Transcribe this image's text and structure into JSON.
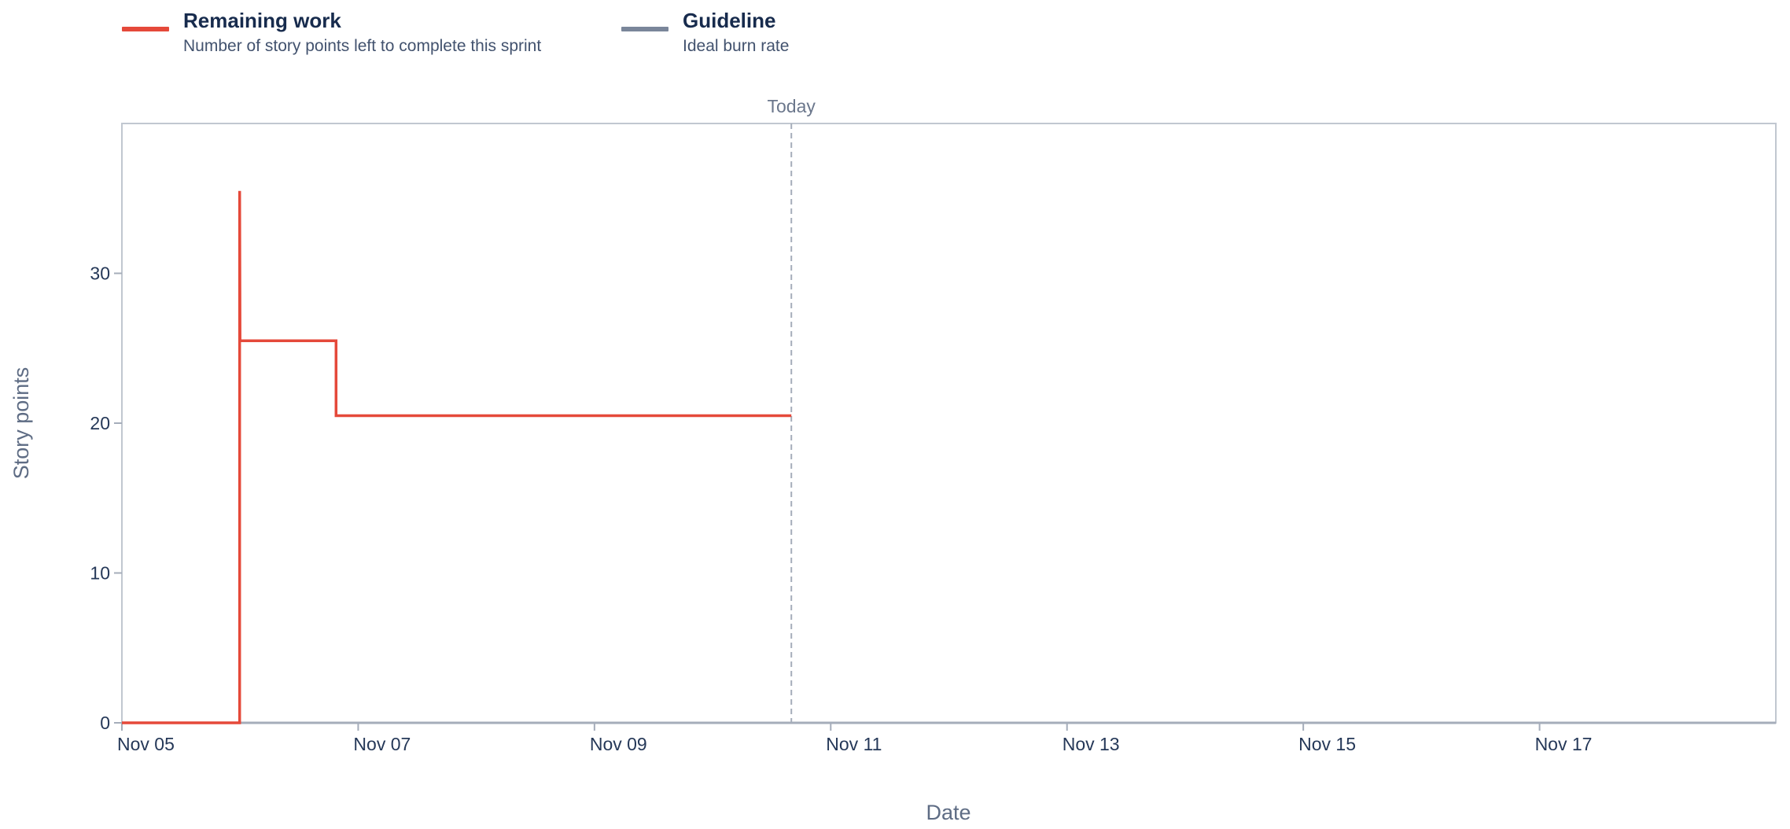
{
  "legend": {
    "remaining": {
      "title": "Remaining work",
      "desc": "Number of story points left to complete this sprint",
      "color": "#e5493a"
    },
    "guideline": {
      "title": "Guideline",
      "desc": "Ideal burn rate",
      "color": "#7a869a"
    }
  },
  "today_label": "Today",
  "chart_data": {
    "type": "line",
    "xlabel": "Date",
    "ylabel": "Story points",
    "x_start": "2023-11-05",
    "x_end": "2023-11-19",
    "ylim": [
      0,
      40
    ],
    "y_ticks": [
      0,
      10,
      20,
      30
    ],
    "x_tick_labels": [
      "Nov 05",
      "Nov 07",
      "Nov 09",
      "Nov 11",
      "Nov 13",
      "Nov 15",
      "Nov 17"
    ],
    "today": "2023-11-10T16:00",
    "grid": false,
    "series": [
      {
        "name": "Remaining work",
        "color": "#e5493a",
        "step": true,
        "points": [
          {
            "x": "2023-11-05T00:00",
            "y": 0
          },
          {
            "x": "2023-11-05T23:55",
            "y": 0
          },
          {
            "x": "2023-11-05T23:55",
            "y": 35.5
          },
          {
            "x": "2023-11-06T00:00",
            "y": 25.5
          },
          {
            "x": "2023-11-06T19:30",
            "y": 25.5
          },
          {
            "x": "2023-11-06T19:30",
            "y": 20.5
          },
          {
            "x": "2023-11-10T16:00",
            "y": 20.5
          }
        ]
      }
    ]
  }
}
